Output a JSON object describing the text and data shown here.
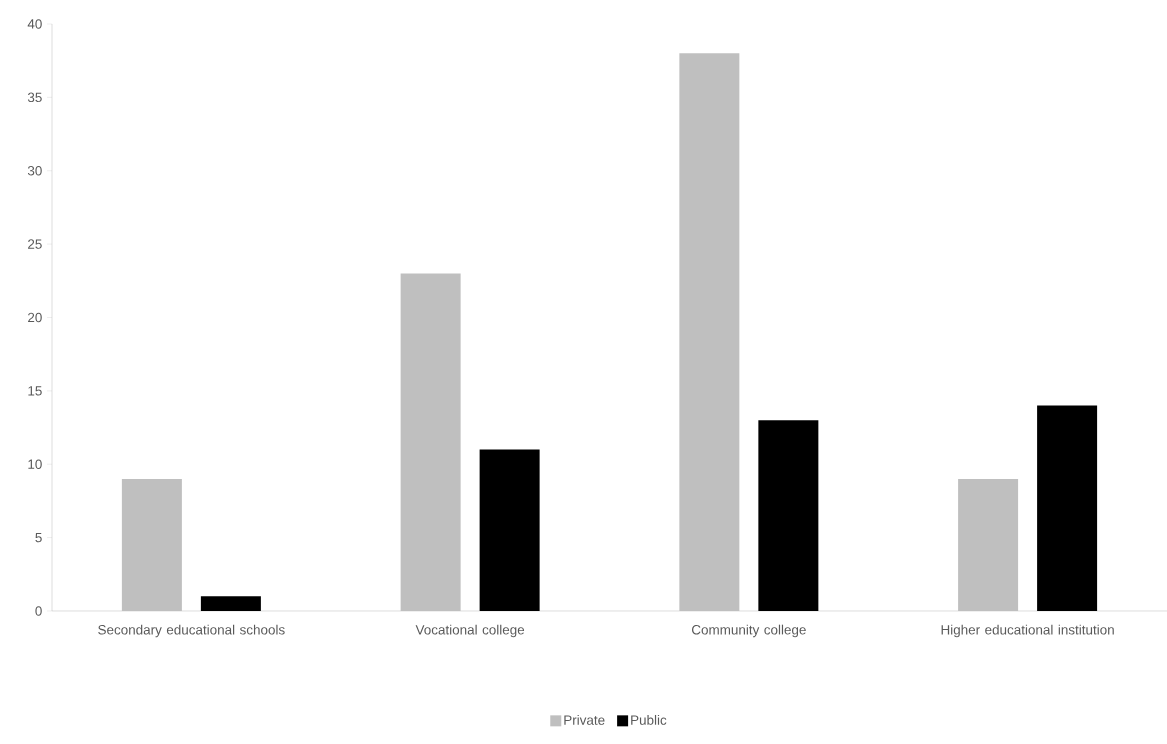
{
  "chart_data": {
    "type": "bar",
    "categories": [
      "Secondary educational schools",
      "Vocational college",
      "Community college",
      "Higher educational institution"
    ],
    "series": [
      {
        "name": "Private",
        "color": "#bfbfbf",
        "values": [
          9,
          23,
          38,
          9
        ]
      },
      {
        "name": "Public",
        "color": "#000000",
        "values": [
          1,
          11,
          13,
          14
        ]
      }
    ],
    "ylim": [
      0,
      40
    ],
    "yticks": [
      0,
      5,
      10,
      15,
      20,
      25,
      30,
      35,
      40
    ],
    "grid": false,
    "legend": "bottom"
  }
}
